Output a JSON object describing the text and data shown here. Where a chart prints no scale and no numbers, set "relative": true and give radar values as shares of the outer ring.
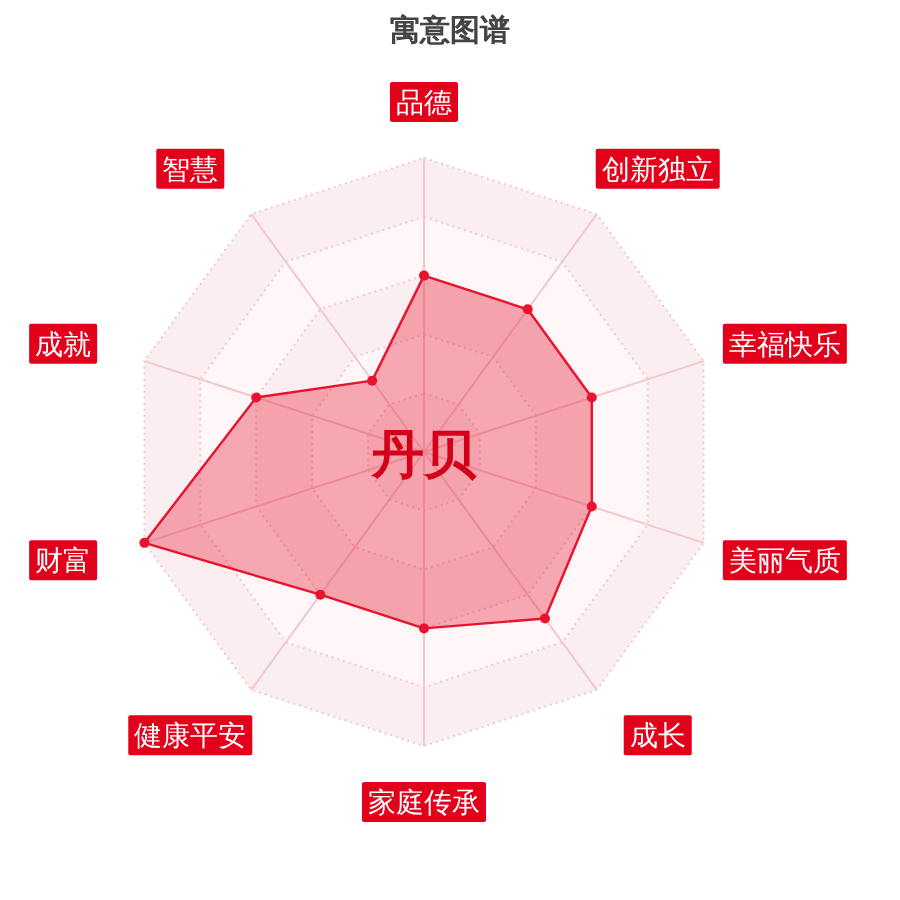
{
  "chart_data": {
    "type": "radar",
    "title": "寓意图谱",
    "categories": [
      "品德",
      "创新独立",
      "幸福快乐",
      "美丽气质",
      "成长",
      "家庭传承",
      "健康平安",
      "财富",
      "成就",
      "智慧"
    ],
    "relative": true,
    "marker": "circle",
    "series": [
      {
        "color": "#e8132f",
        "values": [
          0.6,
          0.6,
          0.6,
          0.6,
          0.7,
          0.6,
          0.6,
          1,
          0.6,
          0.3
        ]
      }
    ],
    "annotations": [
      "丹贝"
    ]
  }
}
